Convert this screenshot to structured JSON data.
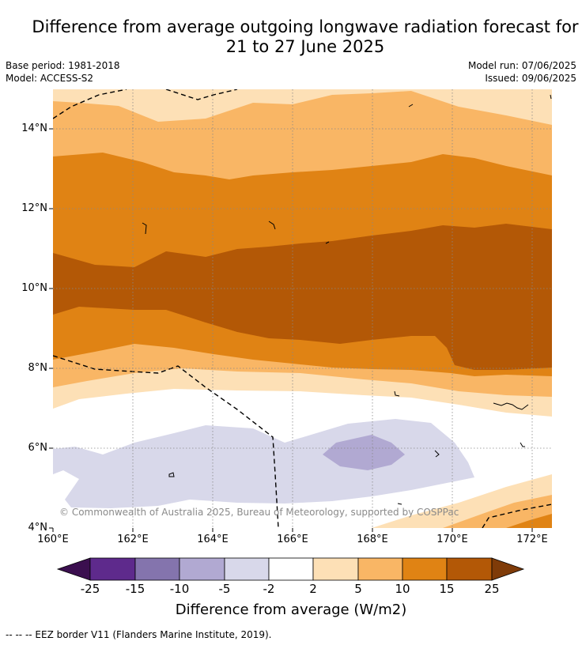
{
  "title_line1": "Difference from average outgoing longwave radiation forecast for",
  "title_line2": "21 to 27 June 2025",
  "base_period": "Base period: 1981-2018",
  "model": "Model: ACCESS-S2",
  "model_run": "Model run: 07/06/2025",
  "issued": "Issued: 09/06/2025",
  "copyright": "© Commonwealth of Australia 2025, Bureau of Meteorology, supported by COSPPac",
  "footnote": "--  --  -- EEZ border V11 (Flanders Marine Institute, 2019).",
  "colors": {
    "neg25": "#3b0f4f",
    "neg15": "#5e2a8c",
    "neg10": "#8474ad",
    "neg5": "#b1a9d2",
    "neg2": "#d8d8ea",
    "zero": "#ffffff",
    "pos2": "#fde0b6",
    "pos5": "#f9b665",
    "pos10": "#e08314",
    "pos15": "#b35806",
    "pos25": "#7f3b08"
  },
  "chart_data": {
    "type": "heatmap",
    "xlabel": "",
    "ylabel": "",
    "x_ticks": [
      "160°E",
      "162°E",
      "164°E",
      "166°E",
      "168°E",
      "170°E",
      "172°E"
    ],
    "y_ticks": [
      "14°N",
      "12°N",
      "10°N",
      "8°N",
      "6°N",
      "4°N"
    ],
    "xlim": [
      160,
      172.5
    ],
    "ylim": [
      3.9,
      15
    ],
    "colorbar": {
      "title": "Difference from average (W/m2)",
      "ticks": [
        "-25",
        "-15",
        "-10",
        "-5",
        "-2",
        "2",
        "5",
        "10",
        "15",
        "25"
      ],
      "levels": [
        -25,
        -15,
        -10,
        -5,
        -2,
        2,
        5,
        10,
        15,
        25
      ],
      "extend": "both"
    },
    "bands": [
      {
        "range": "15 to 25",
        "lat_from": 7.8,
        "lat_to": 11.5
      },
      {
        "range": "10 to 15",
        "lat_from": 8.0,
        "lat_to": 13.3
      },
      {
        "range": "5 to 10",
        "lat_from": 7.4,
        "lat_to": 14.6
      },
      {
        "range": "2 to 5",
        "lat_from": 7.0,
        "lat_to": 15.0
      },
      {
        "range": "-5 to -2",
        "lat_from": 4.5,
        "lat_to": 6.5
      },
      {
        "range": "-10 to -5",
        "lat_from": 5.5,
        "lat_to": 6.3
      }
    ]
  }
}
